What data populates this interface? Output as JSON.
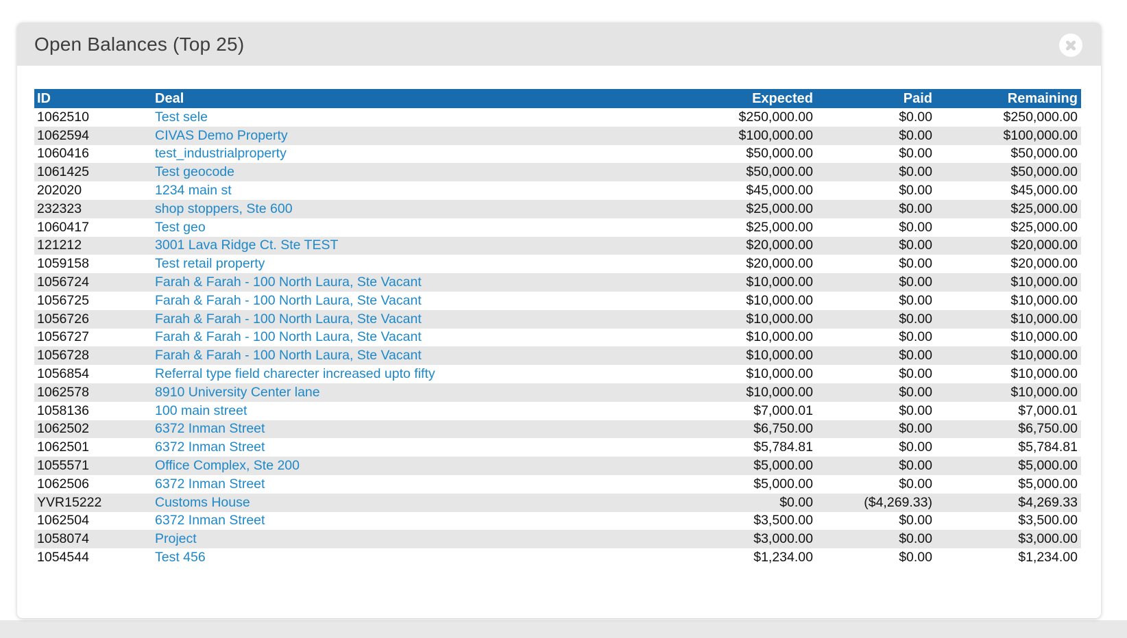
{
  "modal": {
    "title": "Open Balances (Top 25)"
  },
  "icons": {
    "close": "x-circle"
  },
  "colors": {
    "table_header_blue": "#186bad",
    "link_blue": "#1e88c9",
    "row_alt_gray": "#e6e6e6",
    "modal_header_gray": "#e4e4e4"
  },
  "table": {
    "columns": [
      {
        "key": "id",
        "label": "ID",
        "align": "left"
      },
      {
        "key": "deal",
        "label": "Deal",
        "align": "left"
      },
      {
        "key": "expected",
        "label": "Expected",
        "align": "right"
      },
      {
        "key": "paid",
        "label": "Paid",
        "align": "right"
      },
      {
        "key": "remaining",
        "label": "Remaining",
        "align": "right"
      }
    ],
    "rows": [
      {
        "id": "1062510",
        "deal": "Test sele",
        "expected": "$250,000.00",
        "paid": "$0.00",
        "remaining": "$250,000.00"
      },
      {
        "id": "1062594",
        "deal": "CIVAS Demo Property",
        "expected": "$100,000.00",
        "paid": "$0.00",
        "remaining": "$100,000.00"
      },
      {
        "id": "1060416",
        "deal": "test_industrialproperty",
        "expected": "$50,000.00",
        "paid": "$0.00",
        "remaining": "$50,000.00"
      },
      {
        "id": "1061425",
        "deal": "Test geocode",
        "expected": "$50,000.00",
        "paid": "$0.00",
        "remaining": "$50,000.00"
      },
      {
        "id": "202020",
        "deal": "1234 main st",
        "expected": "$45,000.00",
        "paid": "$0.00",
        "remaining": "$45,000.00"
      },
      {
        "id": "232323",
        "deal": "shop stoppers, Ste 600",
        "expected": "$25,000.00",
        "paid": "$0.00",
        "remaining": "$25,000.00"
      },
      {
        "id": "1060417",
        "deal": "Test geo",
        "expected": "$25,000.00",
        "paid": "$0.00",
        "remaining": "$25,000.00"
      },
      {
        "id": "121212",
        "deal": "3001 Lava Ridge Ct. Ste TEST",
        "expected": "$20,000.00",
        "paid": "$0.00",
        "remaining": "$20,000.00"
      },
      {
        "id": "1059158",
        "deal": "Test retail property",
        "expected": "$20,000.00",
        "paid": "$0.00",
        "remaining": "$20,000.00"
      },
      {
        "id": "1056724",
        "deal": "Farah & Farah - 100 North Laura, Ste Vacant",
        "expected": "$10,000.00",
        "paid": "$0.00",
        "remaining": "$10,000.00"
      },
      {
        "id": "1056725",
        "deal": "Farah & Farah - 100 North Laura, Ste Vacant",
        "expected": "$10,000.00",
        "paid": "$0.00",
        "remaining": "$10,000.00"
      },
      {
        "id": "1056726",
        "deal": "Farah & Farah - 100 North Laura, Ste Vacant",
        "expected": "$10,000.00",
        "paid": "$0.00",
        "remaining": "$10,000.00"
      },
      {
        "id": "1056727",
        "deal": "Farah & Farah - 100 North Laura, Ste Vacant",
        "expected": "$10,000.00",
        "paid": "$0.00",
        "remaining": "$10,000.00"
      },
      {
        "id": "1056728",
        "deal": "Farah & Farah - 100 North Laura, Ste Vacant",
        "expected": "$10,000.00",
        "paid": "$0.00",
        "remaining": "$10,000.00"
      },
      {
        "id": "1056854",
        "deal": "Referral type field charecter increased upto fifty",
        "expected": "$10,000.00",
        "paid": "$0.00",
        "remaining": "$10,000.00"
      },
      {
        "id": "1062578",
        "deal": "8910 University Center lane",
        "expected": "$10,000.00",
        "paid": "$0.00",
        "remaining": "$10,000.00"
      },
      {
        "id": "1058136",
        "deal": "100 main street",
        "expected": "$7,000.01",
        "paid": "$0.00",
        "remaining": "$7,000.01"
      },
      {
        "id": "1062502",
        "deal": "6372 Inman Street",
        "expected": "$6,750.00",
        "paid": "$0.00",
        "remaining": "$6,750.00"
      },
      {
        "id": "1062501",
        "deal": "6372 Inman Street",
        "expected": "$5,784.81",
        "paid": "$0.00",
        "remaining": "$5,784.81"
      },
      {
        "id": "1055571",
        "deal": "Office Complex, Ste 200",
        "expected": "$5,000.00",
        "paid": "$0.00",
        "remaining": "$5,000.00"
      },
      {
        "id": "1062506",
        "deal": "6372 Inman Street",
        "expected": "$5,000.00",
        "paid": "$0.00",
        "remaining": "$5,000.00"
      },
      {
        "id": "YVR15222",
        "deal": "Customs House",
        "expected": "$0.00",
        "paid": "($4,269.33)",
        "remaining": "$4,269.33"
      },
      {
        "id": "1062504",
        "deal": "6372 Inman Street",
        "expected": "$3,500.00",
        "paid": "$0.00",
        "remaining": "$3,500.00"
      },
      {
        "id": "1058074",
        "deal": "Project",
        "expected": "$3,000.00",
        "paid": "$0.00",
        "remaining": "$3,000.00"
      },
      {
        "id": "1054544",
        "deal": "Test 456",
        "expected": "$1,234.00",
        "paid": "$0.00",
        "remaining": "$1,234.00"
      }
    ]
  }
}
